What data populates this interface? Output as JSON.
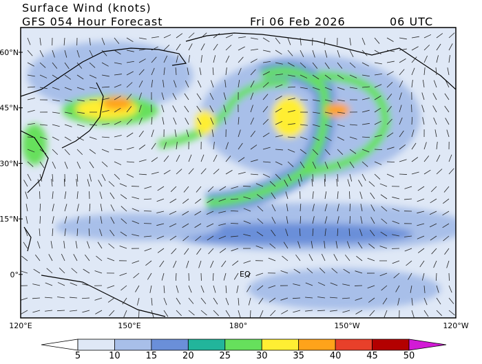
{
  "header": {
    "title": "Surface Wind (knots)",
    "subtitle": "GFS 054 Hour Forecast",
    "date": "Fri 06 Feb 2026",
    "time": "06 UTC"
  },
  "map": {
    "lat_labels": [
      "60°N",
      "45°N",
      "30°N",
      "15°N",
      "0°"
    ],
    "lon_labels": [
      "120°E",
      "150°E",
      "180°",
      "150°W",
      "120°W"
    ],
    "equator_label": "EQ"
  },
  "colorbar": {
    "ticks": [
      5,
      10,
      15,
      20,
      25,
      30,
      35,
      40,
      45,
      50
    ],
    "colors": [
      "#ffffff",
      "#dfe8f6",
      "#a8bfe9",
      "#6a8fd9",
      "#22b59b",
      "#66e05c",
      "#ffee33",
      "#ffa31a",
      "#e8402a",
      "#b30000",
      "#d21ad6"
    ]
  }
}
